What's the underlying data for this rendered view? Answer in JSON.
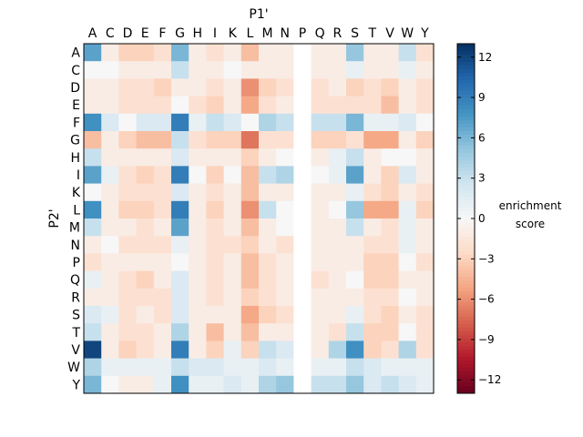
{
  "chart_data": {
    "type": "heatmap",
    "x_title": "P1'",
    "y_title": "P2'",
    "x_categories": [
      "A",
      "C",
      "D",
      "E",
      "F",
      "G",
      "H",
      "I",
      "K",
      "L",
      "M",
      "N",
      "P",
      "Q",
      "R",
      "S",
      "T",
      "V",
      "W",
      "Y"
    ],
    "y_categories": [
      "A",
      "C",
      "D",
      "E",
      "F",
      "G",
      "H",
      "I",
      "K",
      "L",
      "M",
      "N",
      "P",
      "Q",
      "R",
      "S",
      "T",
      "V",
      "W",
      "Y"
    ],
    "values": [
      [
        7,
        -1,
        -3,
        -3,
        -2,
        6,
        -1,
        -2,
        -1,
        -4,
        -1,
        -1,
        null,
        -1,
        -1,
        5,
        -1,
        -1,
        3,
        -2
      ],
      [
        0,
        0,
        -1,
        -1,
        -1,
        3,
        -1,
        -1,
        0,
        -1,
        -1,
        -1,
        null,
        -1,
        -1,
        1,
        -1,
        -1,
        1,
        -1
      ],
      [
        -1,
        -1,
        -2,
        -2,
        -3,
        -1,
        -1,
        -2,
        -1,
        -6,
        -3,
        -2,
        null,
        -2,
        -1,
        -3,
        -2,
        -3,
        -1,
        -2
      ],
      [
        -1,
        -1,
        -2,
        -2,
        -2,
        0,
        -2,
        -3,
        -1,
        -5,
        -2,
        -1,
        null,
        -2,
        -2,
        -2,
        -2,
        -4,
        -1,
        -2
      ],
      [
        8,
        2,
        0,
        2,
        2,
        9,
        1,
        3,
        2,
        0,
        4,
        3,
        null,
        3,
        3,
        6,
        1,
        1,
        2,
        0
      ],
      [
        -4,
        -1,
        -3,
        -4,
        -4,
        3,
        -2,
        -3,
        -3,
        -7,
        -2,
        -2,
        null,
        -3,
        -3,
        -2,
        -5,
        -5,
        -1,
        -3
      ],
      [
        3,
        -1,
        -1,
        -1,
        -1,
        2,
        -1,
        -1,
        -1,
        -3,
        -1,
        0,
        null,
        -1,
        1,
        3,
        -1,
        0,
        0,
        -1
      ],
      [
        7,
        1,
        -2,
        -3,
        -2,
        9,
        0,
        -3,
        0,
        -4,
        3,
        4,
        null,
        0,
        1,
        7,
        -1,
        -3,
        2,
        -1
      ],
      [
        0,
        -1,
        -2,
        -2,
        -2,
        2,
        -1,
        -2,
        -1,
        -4,
        -1,
        -1,
        null,
        -1,
        -1,
        1,
        -2,
        -3,
        -1,
        -2
      ],
      [
        8,
        -1,
        -3,
        -3,
        -2,
        9,
        -1,
        -3,
        -1,
        -6,
        3,
        0,
        null,
        -1,
        0,
        5,
        -5,
        -5,
        1,
        -3
      ],
      [
        3,
        -1,
        -1,
        -2,
        -1,
        7,
        -1,
        -2,
        -1,
        -4,
        -1,
        0,
        null,
        -1,
        -1,
        3,
        -1,
        -2,
        1,
        -1
      ],
      [
        -1,
        0,
        -2,
        -2,
        -2,
        1,
        -1,
        -2,
        -2,
        -3,
        -1,
        -2,
        null,
        -1,
        -1,
        -1,
        -2,
        -2,
        1,
        -1
      ],
      [
        -2,
        -1,
        -1,
        -1,
        -1,
        0,
        -1,
        -2,
        -1,
        -4,
        -2,
        -1,
        null,
        -1,
        -1,
        -1,
        -3,
        -3,
        0,
        -2
      ],
      [
        1,
        -1,
        -2,
        -3,
        -1,
        2,
        -1,
        -2,
        -1,
        -4,
        -2,
        -1,
        null,
        -2,
        -1,
        0,
        -3,
        -3,
        -1,
        -1
      ],
      [
        -1,
        -1,
        -2,
        -2,
        -2,
        2,
        -1,
        -2,
        -1,
        -3,
        -2,
        -1,
        null,
        -1,
        -1,
        -1,
        -2,
        -2,
        0,
        -1
      ],
      [
        2,
        1,
        -2,
        -1,
        -2,
        2,
        -1,
        -1,
        -1,
        -5,
        -3,
        -2,
        null,
        -1,
        -1,
        1,
        -2,
        -3,
        -1,
        -2
      ],
      [
        3,
        -1,
        -2,
        -2,
        -1,
        4,
        -1,
        -4,
        -1,
        -4,
        -1,
        -1,
        null,
        -1,
        -2,
        3,
        -3,
        -3,
        0,
        -2
      ],
      [
        12,
        -1,
        -3,
        -2,
        -1,
        9,
        -1,
        -3,
        1,
        -3,
        3,
        2,
        null,
        -1,
        4,
        8,
        -3,
        -2,
        4,
        -2
      ],
      [
        4,
        1,
        1,
        1,
        1,
        3,
        2,
        2,
        1,
        1,
        2,
        1,
        null,
        1,
        1,
        3,
        2,
        1,
        1,
        1
      ],
      [
        6,
        0,
        -1,
        -1,
        1,
        8,
        1,
        1,
        2,
        1,
        4,
        5,
        null,
        3,
        3,
        5,
        2,
        3,
        2,
        1
      ]
    ],
    "colorbar_label": "enrichment score",
    "colorbar_ticks": [
      12,
      9,
      6,
      3,
      0,
      -3,
      -6,
      -9,
      -12
    ],
    "colorbar_tick_labels": [
      "12",
      "9",
      "6",
      "3",
      "0",
      "−3",
      "−6",
      "−9",
      "−12"
    ],
    "vmin": -13,
    "vmax": 13,
    "colormap": "RdBu"
  }
}
